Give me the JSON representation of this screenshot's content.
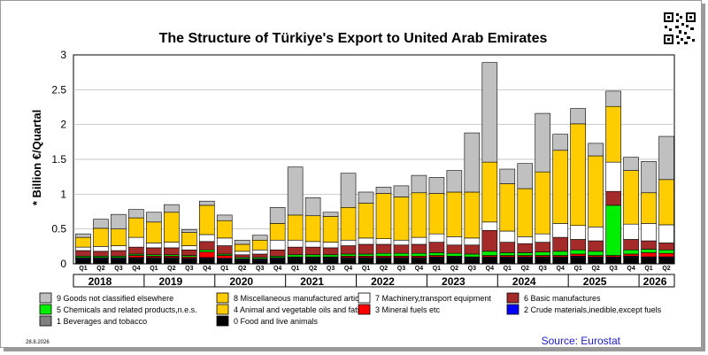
{
  "chart_data": {
    "type": "bar",
    "stacked": true,
    "title": "The Structure of Türkiye's Export to United Arab Emirates",
    "ylabel": "* Billion €/Quartal",
    "ylim": [
      0,
      3
    ],
    "yticks": [
      "0",
      "0.5",
      "1",
      "1.5",
      "2",
      "2.5",
      "3"
    ],
    "ytick_values": [
      0,
      0.5,
      1,
      1.5,
      2,
      2.5,
      3
    ],
    "categories": [
      "Q1",
      "Q2",
      "Q3",
      "Q4",
      "Q1",
      "Q2",
      "Q3",
      "Q4",
      "Q1",
      "Q2",
      "Q3",
      "Q4",
      "Q1",
      "Q2",
      "Q3",
      "Q4",
      "Q1",
      "Q2",
      "Q3",
      "Q4",
      "Q1",
      "Q2",
      "Q3",
      "Q4",
      "Q1",
      "Q2",
      "Q3",
      "Q4",
      "Q1",
      "Q2",
      "Q3",
      "Q4",
      "Q1",
      "Q2"
    ],
    "years": [
      "2018",
      "2019",
      "2020",
      "2021",
      "2022",
      "2023",
      "2024",
      "2025",
      "2026"
    ],
    "series": [
      {
        "name": "0 Food and live animals",
        "color": "#000000",
        "values": [
          0.06,
          0.06,
          0.06,
          0.07,
          0.07,
          0.07,
          0.06,
          0.07,
          0.06,
          0.04,
          0.04,
          0.06,
          0.07,
          0.07,
          0.07,
          0.07,
          0.07,
          0.07,
          0.07,
          0.07,
          0.08,
          0.08,
          0.07,
          0.08,
          0.08,
          0.08,
          0.08,
          0.08,
          0.09,
          0.08,
          0.08,
          0.09,
          0.08,
          0.08
        ]
      },
      {
        "name": "1 Beverages and tobacco",
        "color": "#808080",
        "values": [
          0.01,
          0.01,
          0.01,
          0.01,
          0.01,
          0.01,
          0.01,
          0.01,
          0.01,
          0.01,
          0.01,
          0.01,
          0.01,
          0.01,
          0.01,
          0.01,
          0.01,
          0.01,
          0.01,
          0.01,
          0.01,
          0.01,
          0.01,
          0.01,
          0.01,
          0.01,
          0.01,
          0.01,
          0.01,
          0.01,
          0.01,
          0.01,
          0.01,
          0.01
        ]
      },
      {
        "name": "2 Crude materials,inedible,except fuels",
        "color": "#0000ff",
        "values": [
          0.01,
          0.01,
          0.01,
          0.01,
          0.01,
          0.01,
          0.01,
          0.01,
          0.01,
          0.01,
          0.01,
          0.01,
          0.01,
          0.01,
          0.01,
          0.01,
          0.01,
          0.01,
          0.01,
          0.01,
          0.01,
          0.01,
          0.01,
          0.01,
          0.01,
          0.01,
          0.01,
          0.01,
          0.01,
          0.01,
          0.01,
          0.01,
          0.01,
          0.01
        ]
      },
      {
        "name": "3 Mineral fuels etc",
        "color": "#ff0000",
        "values": [
          0.01,
          0.01,
          0.01,
          0.03,
          0.02,
          0.02,
          0.02,
          0.08,
          0.04,
          0.01,
          0.01,
          0.01,
          0.01,
          0.01,
          0.01,
          0.02,
          0.02,
          0.02,
          0.02,
          0.02,
          0.02,
          0.01,
          0.01,
          0.02,
          0.02,
          0.02,
          0.02,
          0.02,
          0.03,
          0.02,
          0.02,
          0.03,
          0.06,
          0.05
        ]
      },
      {
        "name": "5 Chemicals and related products,n.e.s.",
        "color": "#00ee00",
        "values": [
          0.02,
          0.02,
          0.02,
          0.02,
          0.02,
          0.02,
          0.02,
          0.03,
          0.02,
          0.02,
          0.02,
          0.02,
          0.03,
          0.03,
          0.03,
          0.03,
          0.03,
          0.04,
          0.04,
          0.04,
          0.04,
          0.04,
          0.04,
          0.06,
          0.04,
          0.04,
          0.05,
          0.06,
          0.06,
          0.06,
          0.72,
          0.06,
          0.05,
          0.05
        ]
      },
      {
        "name": "6 Basic manufactures",
        "color": "#a52a2a",
        "values": [
          0.08,
          0.07,
          0.08,
          0.1,
          0.1,
          0.1,
          0.08,
          0.12,
          0.12,
          0.04,
          0.05,
          0.09,
          0.11,
          0.11,
          0.1,
          0.12,
          0.14,
          0.13,
          0.12,
          0.13,
          0.15,
          0.12,
          0.13,
          0.3,
          0.15,
          0.13,
          0.14,
          0.2,
          0.15,
          0.15,
          0.2,
          0.15,
          0.12,
          0.1
        ]
      },
      {
        "name": "7 Machinery,transport equipment",
        "color": "#ffffff",
        "values": [
          0.05,
          0.07,
          0.07,
          0.14,
          0.07,
          0.08,
          0.06,
          0.1,
          0.11,
          0.05,
          0.06,
          0.14,
          0.1,
          0.08,
          0.08,
          0.08,
          0.09,
          0.08,
          0.07,
          0.1,
          0.12,
          0.12,
          0.1,
          0.12,
          0.16,
          0.1,
          0.12,
          0.2,
          0.2,
          0.2,
          0.42,
          0.22,
          0.25,
          0.26
        ]
      },
      {
        "name": "4 Animal and vegetable oils and fats",
        "color": "#ffcc00",
        "values": [
          0.14,
          0.26,
          0.24,
          0.28,
          0.3,
          0.43,
          0.19,
          0.42,
          0.25,
          0.1,
          0.14,
          0.24,
          0.36,
          0.37,
          0.37,
          0.47,
          0.5,
          0.65,
          0.62,
          0.64,
          0.58,
          0.64,
          0.66,
          0.86,
          0.68,
          0.69,
          0.89,
          1.05,
          1.46,
          1.02,
          0.8,
          0.77,
          0.44,
          0.65
        ]
      },
      {
        "name": "8 Miscellaneous manufactured articles",
        "color": "#ffcc00",
        "values": [
          0,
          0,
          0,
          0,
          0,
          0,
          0,
          0,
          0,
          0,
          0,
          0,
          0,
          0,
          0,
          0,
          0,
          0,
          0,
          0,
          0,
          0,
          0,
          0,
          0,
          0,
          0,
          0,
          0,
          0,
          0,
          0,
          0,
          0
        ]
      },
      {
        "name": "9 Goods not classified elsewhere",
        "color": "#c0c0c0",
        "values": [
          0.05,
          0.13,
          0.21,
          0.12,
          0.14,
          0.11,
          0.04,
          0.06,
          0.08,
          0.06,
          0.07,
          0.23,
          0.69,
          0.26,
          0.06,
          0.49,
          0.16,
          0.09,
          0.16,
          0.25,
          0.23,
          0.31,
          0.85,
          1.43,
          0.21,
          0.36,
          0.84,
          0.23,
          0.22,
          0.18,
          0.22,
          0.19,
          0.45,
          0.62
        ]
      }
    ],
    "legend": {
      "placement": "bottom",
      "items": [
        {
          "label": "9 Goods not classified elsewhere",
          "color": "#c0c0c0"
        },
        {
          "label": "8 Miscellaneous manufactured articles",
          "color": "#ffcc00"
        },
        {
          "label": "7 Machinery,transport equipment",
          "color": "#ffffff"
        },
        {
          "label": "6 Basic manufactures",
          "color": "#a52a2a"
        },
        {
          "label": "5 Chemicals and related products,n.e.s.",
          "color": "#00ee00"
        },
        {
          "label": "4 Animal and vegetable oils and fats",
          "color": "#ffcc00"
        },
        {
          "label": "3 Mineral fuels etc",
          "color": "#ff0000"
        },
        {
          "label": "2 Crude materials,inedible,except fuels",
          "color": "#0000ff"
        },
        {
          "label": "1 Beverages and tobacco",
          "color": "#808080"
        },
        {
          "label": "0 Food and live animals",
          "color": "#000000"
        }
      ]
    },
    "grid": true
  },
  "footer": {
    "date": "28.8.2026",
    "source": "Source: Eurostat"
  }
}
